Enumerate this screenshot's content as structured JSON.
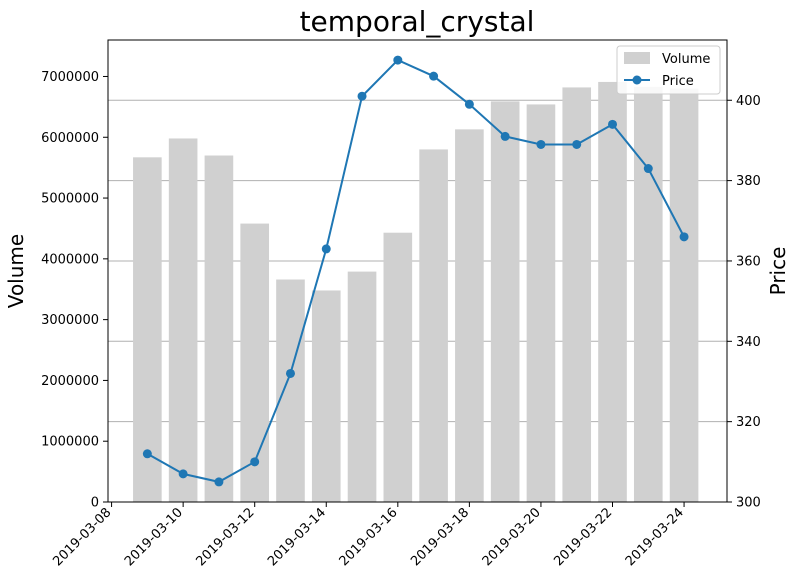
{
  "chart_data": {
    "type": "bar+line",
    "title": "temporal_crystal",
    "x": [
      "2019-03-09",
      "2019-03-10",
      "2019-03-11",
      "2019-03-12",
      "2019-03-13",
      "2019-03-14",
      "2019-03-15",
      "2019-03-16",
      "2019-03-17",
      "2019-03-18",
      "2019-03-19",
      "2019-03-20",
      "2019-03-21",
      "2019-03-22",
      "2019-03-23",
      "2019-03-24"
    ],
    "x_ticks": [
      "2019-03-08",
      "2019-03-10",
      "2019-03-12",
      "2019-03-14",
      "2019-03-16",
      "2019-03-18",
      "2019-03-20",
      "2019-03-22",
      "2019-03-24"
    ],
    "xlim": [
      "2019-03-07.9",
      "2019-03-25.2"
    ],
    "series": [
      {
        "name": "Volume",
        "type": "bar",
        "axis": "left",
        "color": "#d0d0d0",
        "values": [
          5670000,
          5980000,
          5700000,
          4580000,
          3660000,
          3480000,
          3790000,
          4430000,
          5800000,
          6130000,
          6590000,
          6540000,
          6820000,
          6910000,
          6830000,
          6800000
        ]
      },
      {
        "name": "Price",
        "type": "line",
        "axis": "right",
        "color": "#1f77b4",
        "values": [
          312,
          307,
          305,
          310,
          332,
          363,
          401,
          410,
          406,
          399,
          391,
          389,
          389,
          394,
          383,
          366
        ]
      }
    ],
    "ylabel": "Volume",
    "ylim": [
      0,
      7600000
    ],
    "y_ticks": [
      0,
      1000000,
      2000000,
      3000000,
      4000000,
      5000000,
      6000000,
      7000000
    ],
    "y2label": "Price",
    "y2lim": [
      300,
      415
    ],
    "y2_ticks": [
      300,
      320,
      340,
      360,
      380,
      400
    ],
    "grid": "horizontal, right axis",
    "legend": "top-right"
  }
}
